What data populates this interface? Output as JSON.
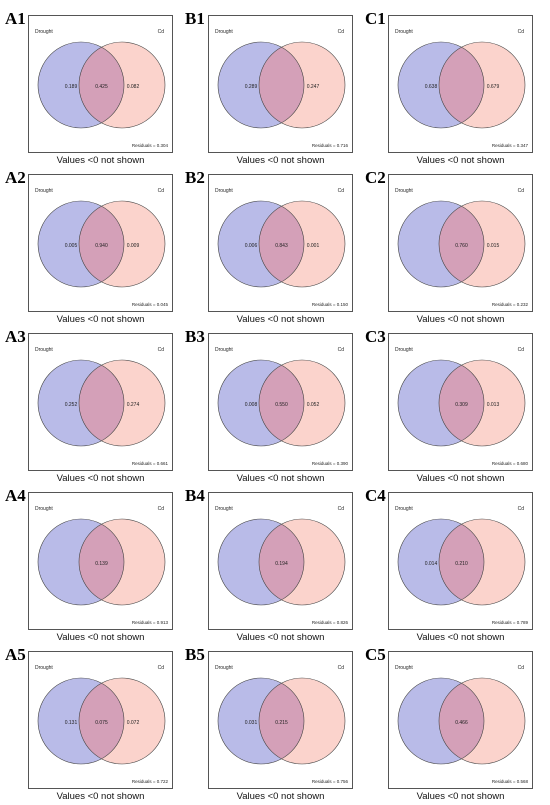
{
  "colors": {
    "left_fill": "#b9bbe8",
    "right_fill": "#fbd3cc",
    "overlap_fill": "#d4a0b8",
    "stroke": "#444444"
  },
  "labels": {
    "left": "Drought",
    "right": "Cd",
    "caption": "Values <0 not shown"
  },
  "panels": [
    {
      "id": "A1",
      "left": "0.189",
      "both": "0.425",
      "right": "0.082",
      "residuals": "Residuals = 0.304"
    },
    {
      "id": "B1",
      "left": "0.289",
      "both": "",
      "right": "0.247",
      "residuals": "Residuals = 0.716"
    },
    {
      "id": "C1",
      "left": "0.638",
      "both": "",
      "right": "0.679",
      "residuals": "Residuals = 0.347"
    },
    {
      "id": "A2",
      "left": "0.005",
      "both": "0.940",
      "right": "0.009",
      "residuals": "Residuals = 0.045"
    },
    {
      "id": "B2",
      "left": "0.006",
      "both": "0.843",
      "right": "0.001",
      "residuals": "Residuals = 0.150"
    },
    {
      "id": "C2",
      "left": "",
      "both": "0.760",
      "right": "0.015",
      "residuals": "Residuals = 0.232"
    },
    {
      "id": "A3",
      "left": "0.252",
      "both": "",
      "right": "0.274",
      "residuals": "Residuals = 0.661"
    },
    {
      "id": "B3",
      "left": "0.008",
      "both": "0.550",
      "right": "0.052",
      "residuals": "Residuals = 0.390"
    },
    {
      "id": "C3",
      "left": "",
      "both": "0.309",
      "right": "0.013",
      "residuals": "Residuals = 0.680"
    },
    {
      "id": "A4",
      "left": "",
      "both": "0.139",
      "right": "",
      "residuals": "Residuals = 0.913"
    },
    {
      "id": "B4",
      "left": "",
      "both": "0.194",
      "right": "",
      "residuals": "Residuals = 0.826"
    },
    {
      "id": "C4",
      "left": "0.014",
      "both": "0.210",
      "right": "",
      "residuals": "Residuals = 0.789"
    },
    {
      "id": "A5",
      "left": "0.131",
      "both": "0.075",
      "right": "0.072",
      "residuals": "Residuals = 0.722"
    },
    {
      "id": "B5",
      "left": "0.031",
      "both": "0.215",
      "right": "",
      "residuals": "Residuals = 0.756"
    },
    {
      "id": "C5",
      "left": "",
      "both": "0.466",
      "right": "",
      "residuals": "Residuals = 0.568"
    }
  ]
}
